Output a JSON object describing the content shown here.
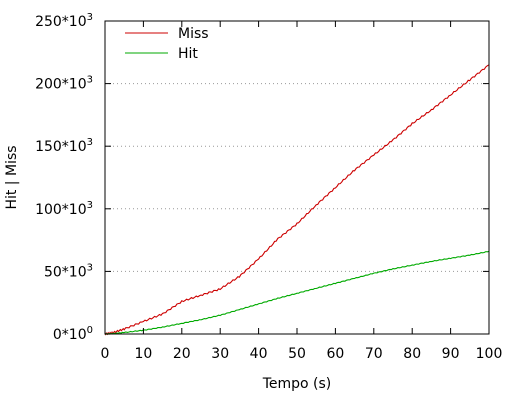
{
  "chart_data": {
    "type": "line",
    "title": "",
    "xlabel": "Tempo (s)",
    "ylabel": "Hit | Miss",
    "xlim": [
      0,
      100
    ],
    "ylim": [
      0,
      250000
    ],
    "x_ticks": [
      0,
      10,
      20,
      30,
      40,
      50,
      60,
      70,
      80,
      90,
      100
    ],
    "y_ticks": [
      {
        "value": 0,
        "mantissa": "0*10",
        "exponent": "0"
      },
      {
        "value": 50000,
        "mantissa": "50*10",
        "exponent": "3"
      },
      {
        "value": 100000,
        "mantissa": "100*10",
        "exponent": "3"
      },
      {
        "value": 150000,
        "mantissa": "150*10",
        "exponent": "3"
      },
      {
        "value": 200000,
        "mantissa": "200*10",
        "exponent": "3"
      },
      {
        "value": 250000,
        "mantissa": "250*10",
        "exponent": "3"
      }
    ],
    "grid": "horizontal-dotted",
    "legend_position": "top-left",
    "series": [
      {
        "name": "Miss",
        "color": "#cc0000",
        "x": [
          0,
          2,
          5,
          10,
          15,
          20,
          25,
          30,
          35,
          40,
          45,
          50,
          55,
          60,
          65,
          70,
          75,
          80,
          85,
          90,
          95,
          100
        ],
        "y": [
          0,
          1000,
          4000,
          10000,
          16000,
          26000,
          31000,
          36000,
          46000,
          60000,
          76000,
          88000,
          103000,
          117000,
          131000,
          143000,
          155000,
          168000,
          179000,
          191000,
          203000,
          215000
        ]
      },
      {
        "name": "Hit",
        "color": "#00aa00",
        "x": [
          0,
          2,
          5,
          10,
          15,
          20,
          25,
          30,
          35,
          40,
          45,
          50,
          55,
          60,
          65,
          70,
          75,
          80,
          85,
          90,
          95,
          100
        ],
        "y": [
          0,
          300,
          1200,
          3000,
          5500,
          8500,
          11500,
          15000,
          19500,
          24000,
          28500,
          32500,
          36500,
          40500,
          44500,
          48500,
          52000,
          55000,
          58000,
          60500,
          63000,
          66000
        ]
      }
    ]
  }
}
